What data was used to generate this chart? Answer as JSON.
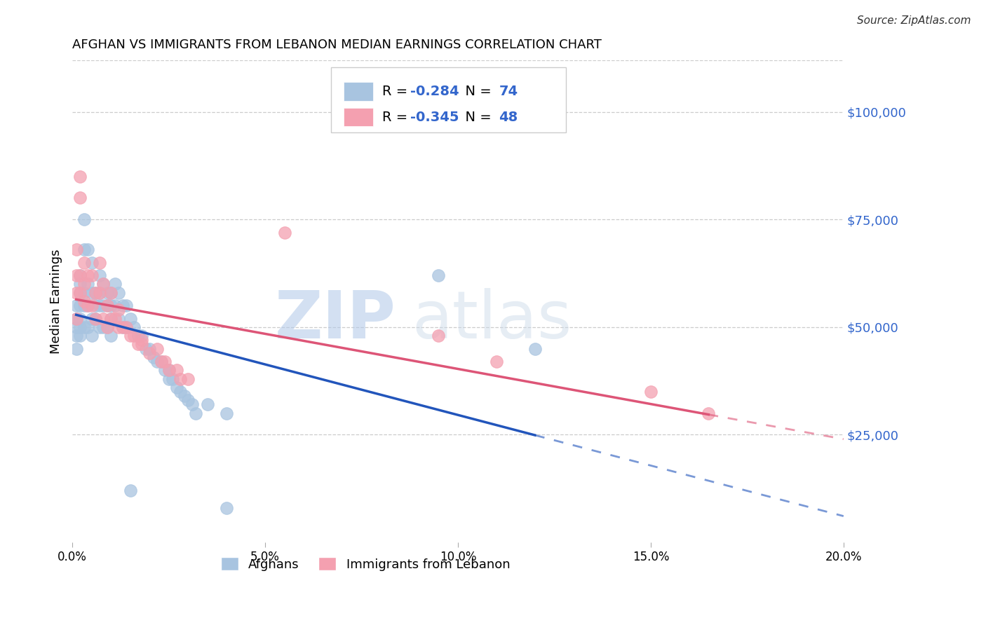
{
  "title": "AFGHAN VS IMMIGRANTS FROM LEBANON MEDIAN EARNINGS CORRELATION CHART",
  "source": "Source: ZipAtlas.com",
  "ylabel": "Median Earnings",
  "watermark_zip": "ZIP",
  "watermark_atlas": "atlas",
  "afghan_color": "#a8c4e0",
  "lebanon_color": "#f4a0b0",
  "afghan_line_color": "#2255bb",
  "lebanon_line_color": "#dd5577",
  "ytick_labels": [
    "$25,000",
    "$50,000",
    "$75,000",
    "$100,000"
  ],
  "ytick_values": [
    25000,
    50000,
    75000,
    100000
  ],
  "ylim": [
    0,
    112000
  ],
  "xlim": [
    0.0,
    0.2
  ],
  "xtick_positions": [
    0.0,
    0.05,
    0.1,
    0.15,
    0.2
  ],
  "xtick_labels": [
    "0.0%",
    "5.0%",
    "10.0%",
    "15.0%",
    "20.0%"
  ],
  "afghan_x": [
    0.001,
    0.001,
    0.001,
    0.001,
    0.001,
    0.002,
    0.002,
    0.002,
    0.002,
    0.002,
    0.002,
    0.002,
    0.003,
    0.003,
    0.003,
    0.003,
    0.003,
    0.004,
    0.004,
    0.004,
    0.004,
    0.005,
    0.005,
    0.005,
    0.005,
    0.006,
    0.006,
    0.006,
    0.007,
    0.007,
    0.007,
    0.007,
    0.008,
    0.008,
    0.008,
    0.009,
    0.009,
    0.009,
    0.01,
    0.01,
    0.01,
    0.01,
    0.011,
    0.011,
    0.012,
    0.012,
    0.013,
    0.013,
    0.014,
    0.014,
    0.015,
    0.016,
    0.017,
    0.018,
    0.019,
    0.02,
    0.021,
    0.022,
    0.023,
    0.024,
    0.025,
    0.025,
    0.026,
    0.027,
    0.028,
    0.029,
    0.03,
    0.031,
    0.032,
    0.035,
    0.04,
    0.095,
    0.12,
    0.015,
    0.04
  ],
  "afghan_y": [
    55000,
    52000,
    50000,
    48000,
    45000,
    62000,
    60000,
    58000,
    55000,
    52000,
    50000,
    48000,
    75000,
    68000,
    58000,
    55000,
    50000,
    68000,
    60000,
    55000,
    50000,
    65000,
    58000,
    52000,
    48000,
    58000,
    55000,
    52000,
    62000,
    58000,
    55000,
    50000,
    60000,
    55000,
    50000,
    58000,
    55000,
    50000,
    58000,
    55000,
    52000,
    48000,
    60000,
    55000,
    58000,
    52000,
    55000,
    50000,
    55000,
    50000,
    52000,
    50000,
    48000,
    48000,
    45000,
    45000,
    43000,
    42000,
    42000,
    40000,
    40000,
    38000,
    38000,
    36000,
    35000,
    34000,
    33000,
    32000,
    30000,
    32000,
    30000,
    62000,
    45000,
    12000,
    8000
  ],
  "lebanon_x": [
    0.001,
    0.001,
    0.001,
    0.001,
    0.002,
    0.002,
    0.002,
    0.002,
    0.003,
    0.003,
    0.003,
    0.004,
    0.004,
    0.005,
    0.005,
    0.006,
    0.006,
    0.007,
    0.007,
    0.008,
    0.008,
    0.009,
    0.009,
    0.01,
    0.01,
    0.011,
    0.012,
    0.013,
    0.014,
    0.015,
    0.016,
    0.017,
    0.018,
    0.02,
    0.022,
    0.023,
    0.024,
    0.025,
    0.027,
    0.028,
    0.03,
    0.055,
    0.095,
    0.11,
    0.15,
    0.165,
    0.012,
    0.018
  ],
  "lebanon_y": [
    68000,
    62000,
    58000,
    52000,
    85000,
    80000,
    62000,
    58000,
    65000,
    60000,
    56000,
    62000,
    55000,
    62000,
    55000,
    58000,
    52000,
    65000,
    58000,
    60000,
    52000,
    55000,
    50000,
    58000,
    52000,
    52000,
    50000,
    50000,
    50000,
    48000,
    48000,
    46000,
    46000,
    44000,
    45000,
    42000,
    42000,
    40000,
    40000,
    38000,
    38000,
    72000,
    48000,
    42000,
    35000,
    30000,
    54000,
    47000
  ]
}
